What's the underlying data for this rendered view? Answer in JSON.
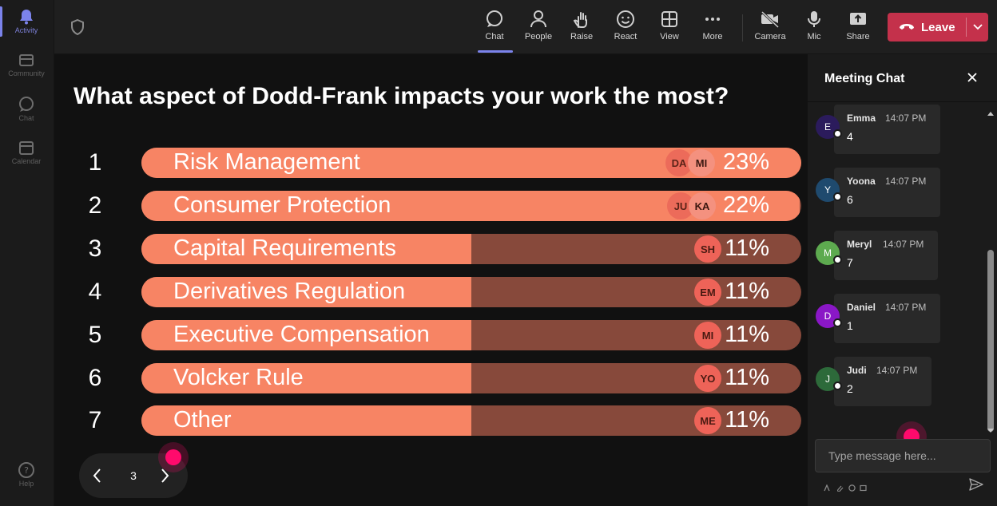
{
  "rail": {
    "items": [
      {
        "label": "Activity",
        "icon": "bell-icon"
      },
      {
        "label": "Community",
        "icon": "community-icon"
      },
      {
        "label": "Chat",
        "icon": "chat-icon"
      },
      {
        "label": "Calendar",
        "icon": "calendar-icon"
      },
      {
        "label": "Help",
        "icon": "help-icon"
      }
    ]
  },
  "toolbar": {
    "buttons": [
      {
        "label": "Chat",
        "icon": "chat-icon"
      },
      {
        "label": "People",
        "icon": "people-icon"
      },
      {
        "label": "Raise",
        "icon": "raise-hand-icon"
      },
      {
        "label": "React",
        "icon": "react-icon"
      },
      {
        "label": "View",
        "icon": "view-grid-icon"
      },
      {
        "label": "More",
        "icon": "more-icon"
      },
      {
        "label": "Camera",
        "icon": "camera-off-icon"
      },
      {
        "label": "Mic",
        "icon": "mic-icon"
      },
      {
        "label": "Share",
        "icon": "share-icon"
      }
    ],
    "leave_label": "Leave",
    "leave_color": "#c4314b"
  },
  "poll": {
    "question": "What aspect of Dodd-Frank impacts your work the most?",
    "options": [
      {
        "num": "1",
        "label": "Risk Management",
        "percent": "23%",
        "fill_fraction": 1.0,
        "avatars": [
          "DA",
          "MI"
        ]
      },
      {
        "num": "2",
        "label": "Consumer Protection",
        "percent": "22%",
        "fill_fraction": 0.998,
        "avatars": [
          "JU",
          "KA"
        ]
      },
      {
        "num": "3",
        "label": "Capital Requirements",
        "percent": "11%",
        "fill_fraction": 0.5,
        "avatars": [
          "SH"
        ]
      },
      {
        "num": "4",
        "label": "Derivatives Regulation",
        "percent": "11%",
        "fill_fraction": 0.5,
        "avatars": [
          "EM"
        ]
      },
      {
        "num": "5",
        "label": "Executive Compensation",
        "percent": "11%",
        "fill_fraction": 0.5,
        "avatars": [
          "MI"
        ]
      },
      {
        "num": "6",
        "label": "Volcker Rule",
        "percent": "11%",
        "fill_fraction": 0.5,
        "avatars": [
          "YO"
        ]
      },
      {
        "num": "7",
        "label": "Other",
        "percent": "11%",
        "fill_fraction": 0.5,
        "avatars": [
          "ME"
        ]
      }
    ],
    "bar_color": "#f78464",
    "track_color": "#87493b"
  },
  "pager": {
    "page": "3"
  },
  "chat": {
    "title": "Meeting Chat",
    "messages": [
      {
        "initial": "E",
        "name": "Emma",
        "time": "14:07 PM",
        "text": "4",
        "color": "#2b1b5c"
      },
      {
        "initial": "Y",
        "name": "Yoona",
        "time": "14:07 PM",
        "text": "6",
        "color": "#1f4a6e"
      },
      {
        "initial": "M",
        "name": "Meryl",
        "time": "14:07 PM",
        "text": "7",
        "color": "#5daa4f"
      },
      {
        "initial": "D",
        "name": "Daniel",
        "time": "14:07 PM",
        "text": "1",
        "color": "#8a17c6"
      },
      {
        "initial": "J",
        "name": "Judi",
        "time": "14:07 PM",
        "text": "2",
        "color": "#2d6a3a"
      }
    ],
    "placeholder": "Type message here..."
  }
}
